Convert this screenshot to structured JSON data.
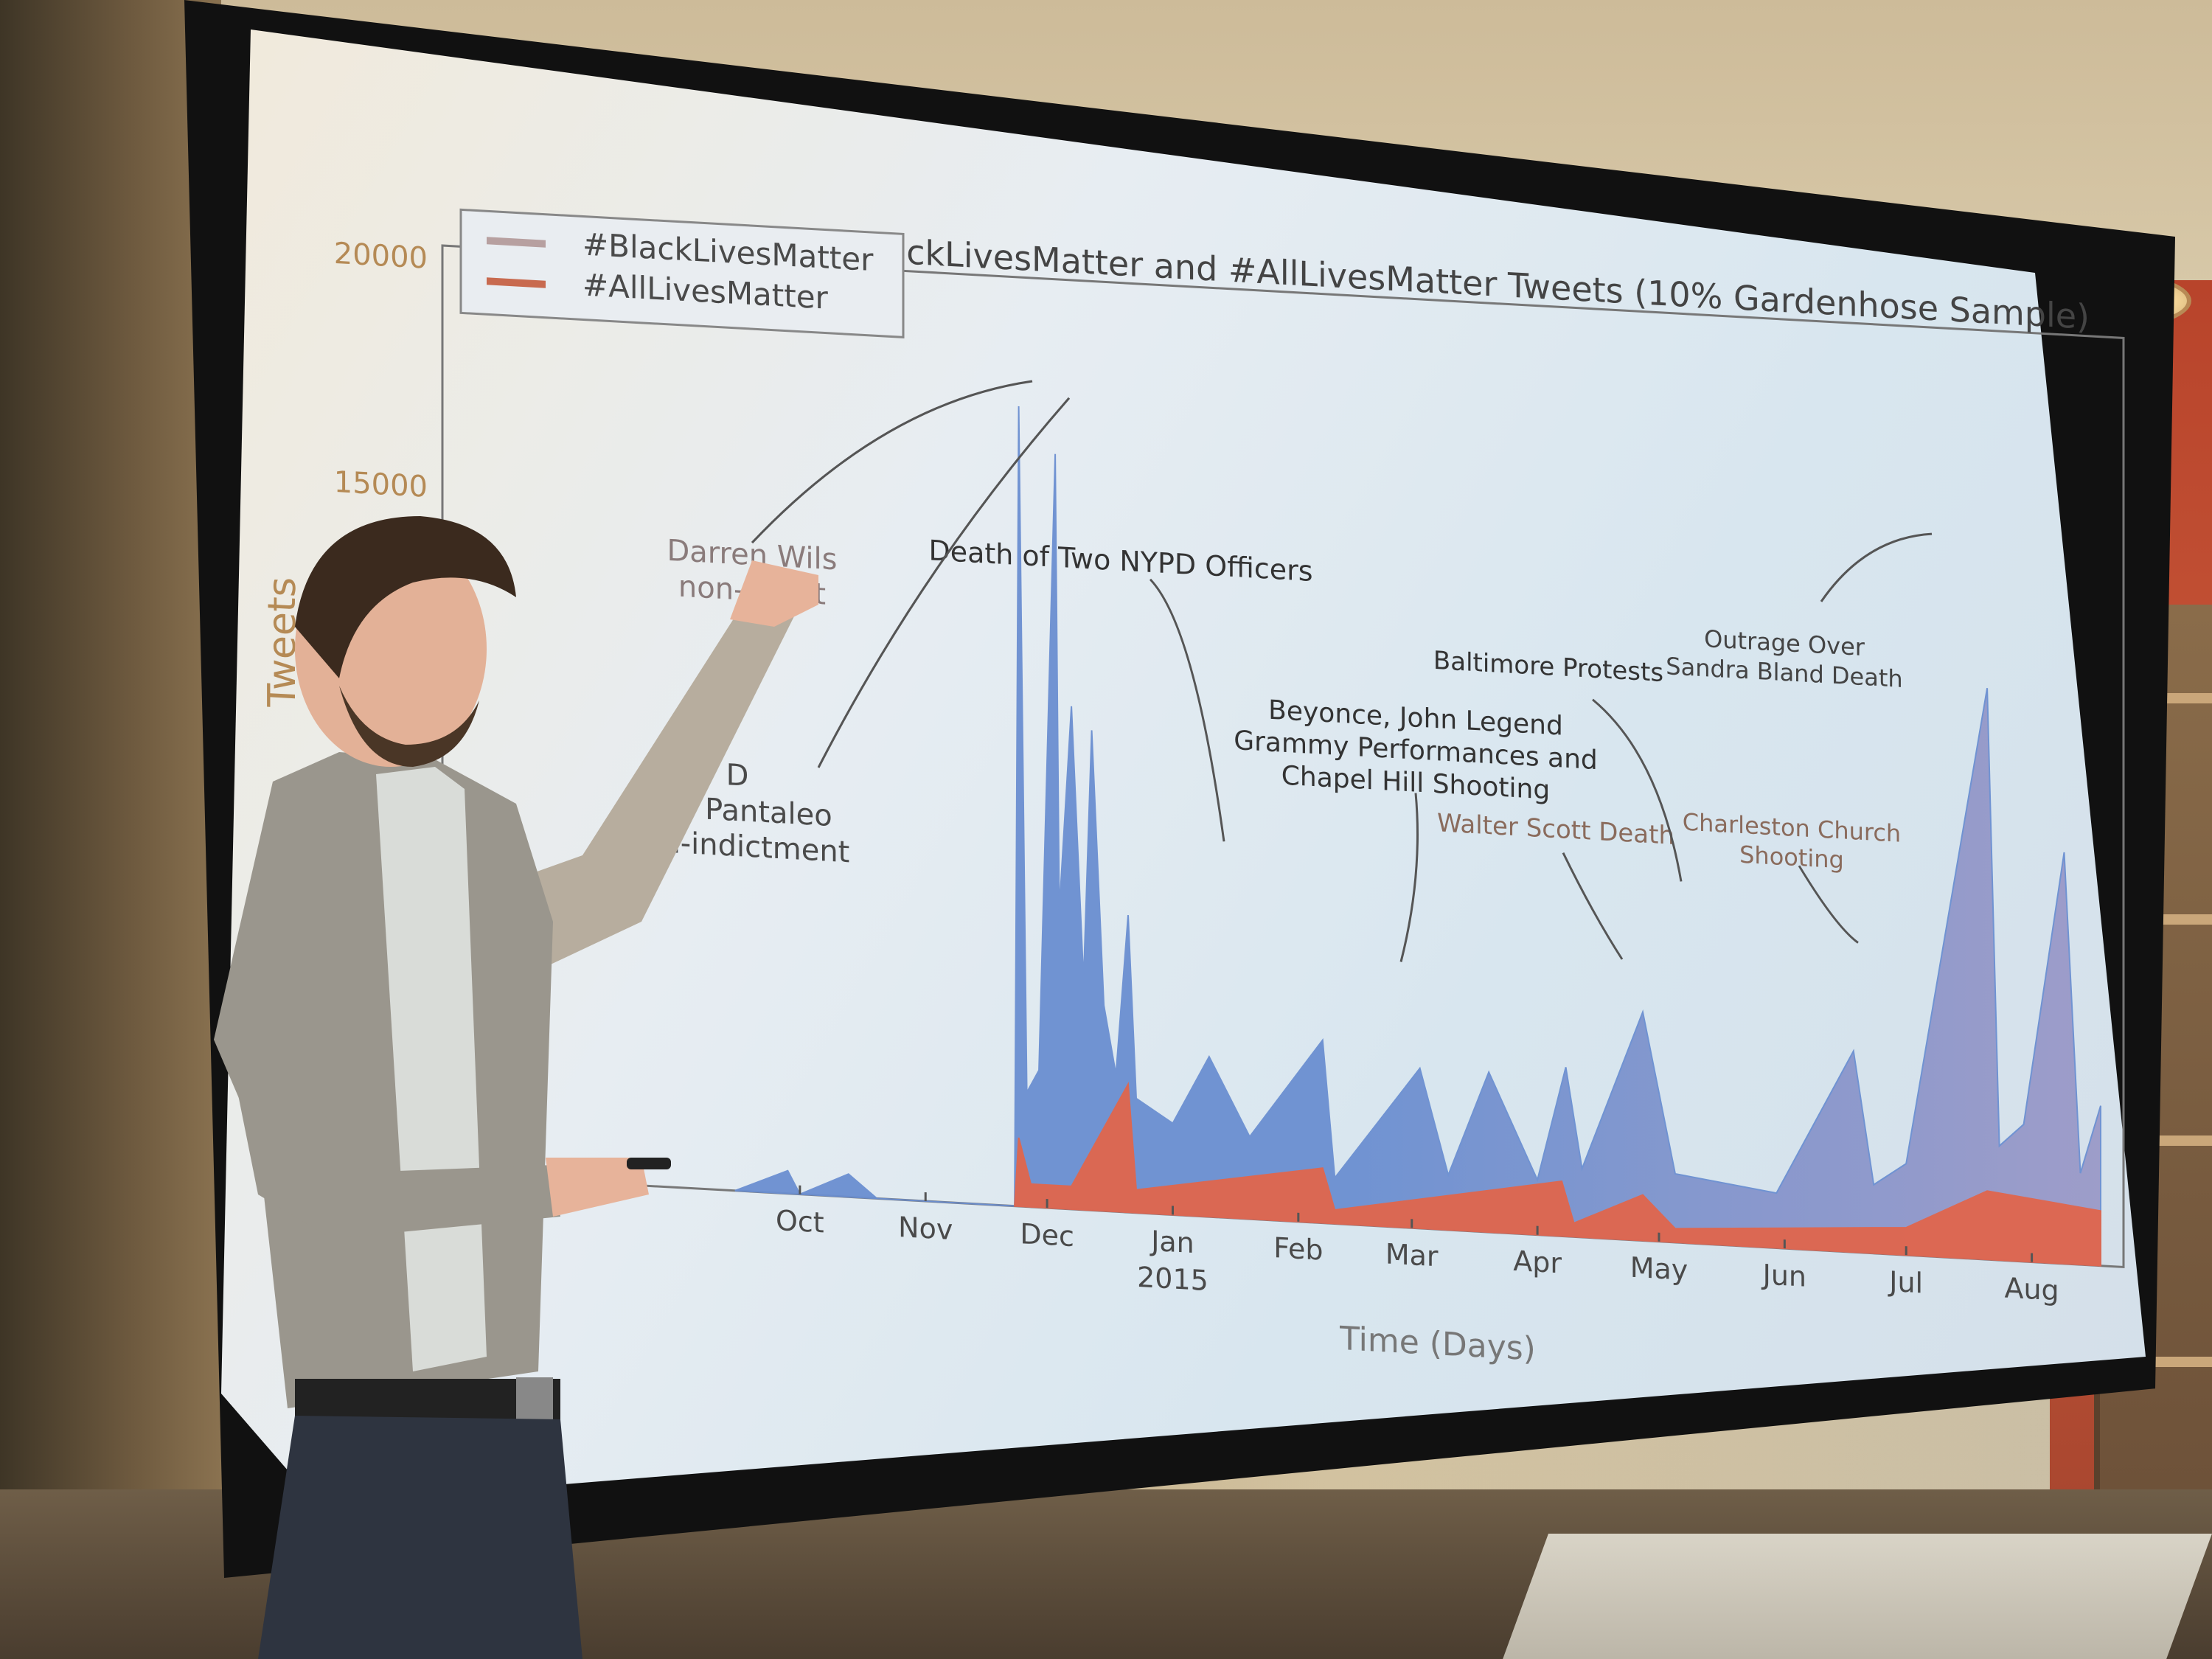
{
  "scene": {
    "setting": "lecture room",
    "presenter": "man pointing at projected chart with right hand, holding clicker in left hand"
  },
  "colors": {
    "blm": "#6b8fd1",
    "blm_late": "#9b9ac8",
    "alm": "#e0664d",
    "text": "#4a4a4a"
  },
  "chart_data": {
    "type": "area",
    "title": "Number of #BlackLivesMatter and #AllLivesMatter Tweets (10% Gardenhose Sample)",
    "xlabel": "Time (Days)",
    "ylabel": "Tweets",
    "y_ticks": [
      "20000",
      "15000"
    ],
    "x_ticks": [
      "Oct",
      "Nov",
      "Dec",
      "Jan",
      "Feb",
      "Mar",
      "Apr",
      "May",
      "Jun",
      "Jul",
      "Aug"
    ],
    "x_tick_sublabel": "2015",
    "ylim": [
      0,
      20000
    ],
    "legend": {
      "placement": "top-left",
      "entries": [
        "#BlackLivesMatter",
        "#AllLivesMatter"
      ]
    },
    "series": [
      {
        "name": "#BlackLivesMatter",
        "points": [
          [
            "2014-09-15",
            0
          ],
          [
            "2014-09-28",
            500
          ],
          [
            "2014-10-01",
            0
          ],
          [
            "2014-10-13",
            500
          ],
          [
            "2014-10-20",
            0
          ],
          [
            "2014-11-23",
            0
          ],
          [
            "2014-11-24",
            17500
          ],
          [
            "2014-11-26",
            2500
          ],
          [
            "2014-11-29",
            3000
          ],
          [
            "2014-12-03",
            16500
          ],
          [
            "2014-12-04",
            6500
          ],
          [
            "2014-12-07",
            11000
          ],
          [
            "2014-12-10",
            5000
          ],
          [
            "2014-12-12",
            10500
          ],
          [
            "2014-12-15",
            4500
          ],
          [
            "2014-12-18",
            3000
          ],
          [
            "2014-12-21",
            6500
          ],
          [
            "2014-12-23",
            2500
          ],
          [
            "2015-01-01",
            2000
          ],
          [
            "2015-01-10",
            3500
          ],
          [
            "2015-01-20",
            1800
          ],
          [
            "2015-02-07",
            4000
          ],
          [
            "2015-02-10",
            1000
          ],
          [
            "2015-03-03",
            3500
          ],
          [
            "2015-03-10",
            1200
          ],
          [
            "2015-03-20",
            3500
          ],
          [
            "2015-04-01",
            1200
          ],
          [
            "2015-04-08",
            3700
          ],
          [
            "2015-04-12",
            1500
          ],
          [
            "2015-04-27",
            5000
          ],
          [
            "2015-05-05",
            1500
          ],
          [
            "2015-05-30",
            1200
          ],
          [
            "2015-06-18",
            4400
          ],
          [
            "2015-06-23",
            1500
          ],
          [
            "2015-07-01",
            2000
          ],
          [
            "2015-07-21",
            12500
          ],
          [
            "2015-07-24",
            2500
          ],
          [
            "2015-07-30",
            3000
          ],
          [
            "2015-08-09",
            9000
          ],
          [
            "2015-08-13",
            2000
          ],
          [
            "2015-08-18",
            3500
          ]
        ]
      },
      {
        "name": "#AllLivesMatter",
        "points": [
          [
            "2014-11-23",
            0
          ],
          [
            "2014-11-24",
            1500
          ],
          [
            "2014-11-27",
            500
          ],
          [
            "2014-12-07",
            500
          ],
          [
            "2014-12-21",
            2800
          ],
          [
            "2014-12-23",
            500
          ],
          [
            "2015-02-07",
            1200
          ],
          [
            "2015-02-10",
            300
          ],
          [
            "2015-04-07",
            1200
          ],
          [
            "2015-04-10",
            300
          ],
          [
            "2015-04-27",
            1000
          ],
          [
            "2015-05-05",
            300
          ],
          [
            "2015-07-01",
            600
          ],
          [
            "2015-07-21",
            1500
          ],
          [
            "2015-08-18",
            1200
          ]
        ]
      }
    ],
    "annotations": [
      {
        "lines": [
          "Darren Wilson",
          "non-indictment"
        ],
        "visible_text": [
          "Darren Wils",
          "non-indict"
        ]
      },
      {
        "lines": [
          "D",
          "niel Pantaleo",
          "non-indictment"
        ]
      },
      {
        "lines": [
          "Death of Two NYPD Officers"
        ]
      },
      {
        "lines": [
          "Beyonce, John Legend",
          "Grammy Performances and",
          "Chapel Hill Shooting"
        ]
      },
      {
        "lines": [
          "Walter Scott Death"
        ]
      },
      {
        "lines": [
          "Baltimore Protests"
        ]
      },
      {
        "lines": [
          "Charleston Church",
          "Shooting"
        ]
      },
      {
        "lines": [
          "Outrage Over",
          "Sandra Bland Death"
        ]
      }
    ]
  }
}
